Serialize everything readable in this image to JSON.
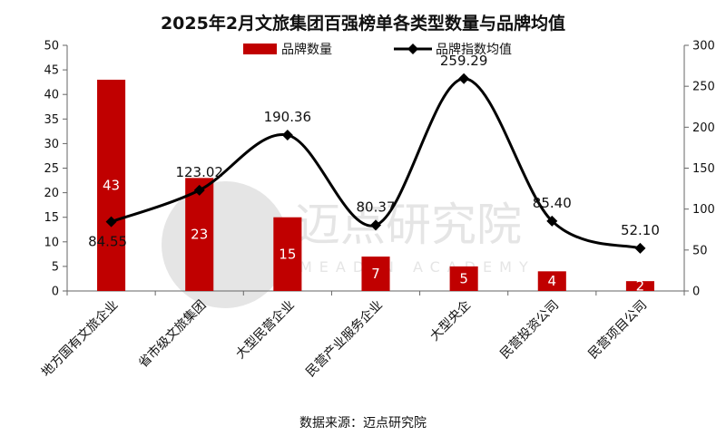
{
  "chart_data": {
    "type": "bar+line",
    "title": "2025年2月文旅集团百强榜单各类型数量与品牌均值",
    "categories": [
      "地方国有文旅企业",
      "省市级文旅集团",
      "大型民营企业",
      "民营产业服务企业",
      "大型央企",
      "民营投资公司",
      "民营项目公司"
    ],
    "series": [
      {
        "name": "品牌数量",
        "type": "bar",
        "axis": "left",
        "color": "#c00000",
        "values": [
          43,
          23,
          15,
          7,
          5,
          4,
          2
        ],
        "labels": [
          "43",
          "23",
          "15",
          "7",
          "5",
          "4",
          "2"
        ]
      },
      {
        "name": "品牌指数均值",
        "type": "line",
        "axis": "right",
        "color": "#000000",
        "values": [
          84.55,
          123.02,
          190.36,
          80.37,
          259.29,
          85.4,
          52.1
        ],
        "labels": [
          "84.55",
          "123.02",
          "190.36",
          "80.37",
          "259.29",
          "85.40",
          "52.10"
        ]
      }
    ],
    "left_axis": {
      "min": 0,
      "max": 50,
      "step": 5,
      "ticks": [
        "0",
        "5",
        "10",
        "15",
        "20",
        "25",
        "30",
        "35",
        "40",
        "45",
        "50"
      ]
    },
    "right_axis": {
      "min": 0,
      "max": 300,
      "step": 50,
      "ticks": [
        "0",
        "50",
        "100",
        "150",
        "200",
        "250",
        "300"
      ]
    },
    "legend_position": "top-center",
    "grid": false
  },
  "source": "数据来源：迈点研究院",
  "watermark": {
    "text_cn": "迈点研究院",
    "text_en": "MEADIN ACADEMY"
  }
}
